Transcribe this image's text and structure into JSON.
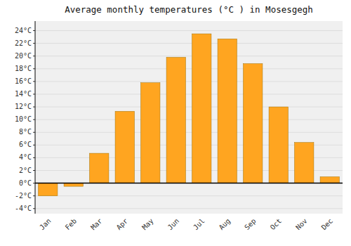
{
  "chart_data": {
    "type": "bar",
    "title": "Average monthly temperatures (°C ) in Mosesgegh",
    "categories": [
      "Jan",
      "Feb",
      "Mar",
      "Apr",
      "May",
      "Jun",
      "Jul",
      "Aug",
      "Sep",
      "Oct",
      "Nov",
      "Dec"
    ],
    "values": [
      -2.0,
      -0.5,
      4.7,
      11.3,
      15.8,
      19.8,
      23.5,
      22.7,
      18.8,
      12.0,
      6.4,
      1.0
    ],
    "color": "#FFA520",
    "ylim": [
      -4.8,
      25.5
    ],
    "yticks": [
      {
        "value": -4,
        "label": "-4°C"
      },
      {
        "value": -2,
        "label": "-2°C"
      },
      {
        "value": 0,
        "label": "0°C"
      },
      {
        "value": 2,
        "label": "2°C"
      },
      {
        "value": 4,
        "label": "4°C"
      },
      {
        "value": 6,
        "label": "6°C"
      },
      {
        "value": 8,
        "label": "8°C"
      },
      {
        "value": 10,
        "label": "10°C"
      },
      {
        "value": 12,
        "label": "12°C"
      },
      {
        "value": 14,
        "label": "14°C"
      },
      {
        "value": 16,
        "label": "16°C"
      },
      {
        "value": 18,
        "label": "18°C"
      },
      {
        "value": 20,
        "label": "20°C"
      },
      {
        "value": 22,
        "label": "22°C"
      },
      {
        "value": 24,
        "label": "24°C"
      }
    ],
    "grid": true
  }
}
